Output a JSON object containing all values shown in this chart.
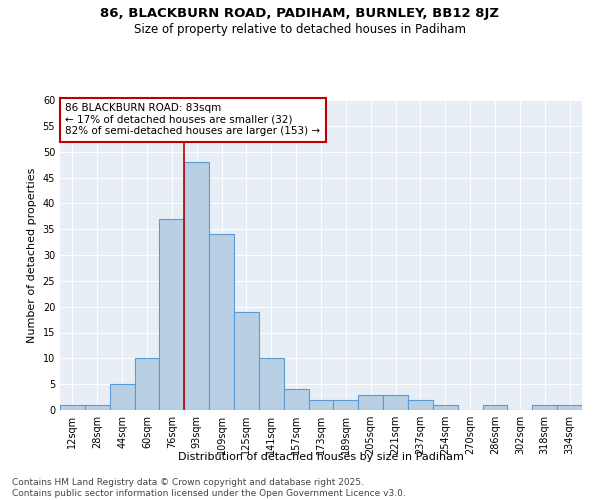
{
  "title_line1": "86, BLACKBURN ROAD, PADIHAM, BURNLEY, BB12 8JZ",
  "title_line2": "Size of property relative to detached houses in Padiham",
  "xlabel": "Distribution of detached houses by size in Padiham",
  "ylabel": "Number of detached properties",
  "categories": [
    "12sqm",
    "28sqm",
    "44sqm",
    "60sqm",
    "76sqm",
    "93sqm",
    "109sqm",
    "125sqm",
    "141sqm",
    "157sqm",
    "173sqm",
    "189sqm",
    "205sqm",
    "221sqm",
    "237sqm",
    "254sqm",
    "270sqm",
    "286sqm",
    "302sqm",
    "318sqm",
    "334sqm"
  ],
  "values": [
    1,
    1,
    5,
    10,
    37,
    48,
    34,
    19,
    10,
    4,
    2,
    2,
    3,
    3,
    2,
    1,
    0,
    1,
    0,
    1,
    1
  ],
  "bar_color": "#b8cfe4",
  "bar_edge_color": "#5b9bd5",
  "vline_x": 4.5,
  "vline_color": "#c00000",
  "annotation_text": "86 BLACKBURN ROAD: 83sqm\n← 17% of detached houses are smaller (32)\n82% of semi-detached houses are larger (153) →",
  "annotation_box_color": "#ffffff",
  "annotation_box_edge_color": "#c00000",
  "ylim": [
    0,
    60
  ],
  "yticks": [
    0,
    5,
    10,
    15,
    20,
    25,
    30,
    35,
    40,
    45,
    50,
    55,
    60
  ],
  "background_color": "#e8eef5",
  "footer_text": "Contains HM Land Registry data © Crown copyright and database right 2025.\nContains public sector information licensed under the Open Government Licence v3.0.",
  "title_fontsize": 9.5,
  "subtitle_fontsize": 8.5,
  "axis_label_fontsize": 8,
  "tick_fontsize": 7,
  "annotation_fontsize": 7.5,
  "footer_fontsize": 6.5
}
